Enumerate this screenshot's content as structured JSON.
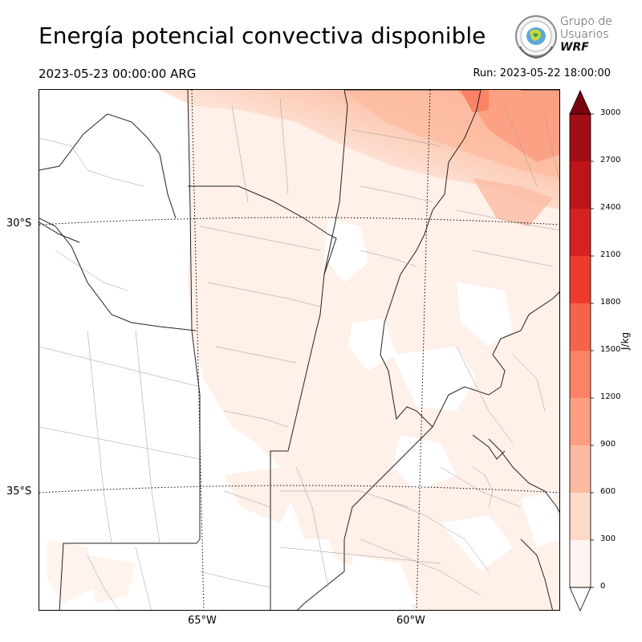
{
  "header": {
    "title": "Energía potencial convectiva disponible",
    "valid_time": "2023-05-23 00:00:00 ARG",
    "run_time": "Run: 2023-05-22 18:00:00"
  },
  "logo": {
    "line1": "Grupo de",
    "line2": "Usuarios",
    "line3": "WRF"
  },
  "map": {
    "lat_labels": [
      "30°S",
      "35°S"
    ],
    "lon_labels": [
      "65°W",
      "60°W"
    ],
    "field": "CAPE",
    "dominant_shading": "light salmon 0–600 J/kg, strongest (600–900) in the northeast corner"
  },
  "colorbar": {
    "unit": "J/kg",
    "ticks": [
      "0",
      "300",
      "600",
      "900",
      "1200",
      "1500",
      "1800",
      "2100",
      "2400",
      "2700",
      "3000"
    ],
    "colors": [
      "#fff5f0",
      "#fdd9c9",
      "#fcbba1",
      "#fc9f81",
      "#fb8265",
      "#f6634a",
      "#ef3b2c",
      "#d52221",
      "#bc141a",
      "#a10e15",
      "#7a0510"
    ],
    "extend": "both"
  }
}
